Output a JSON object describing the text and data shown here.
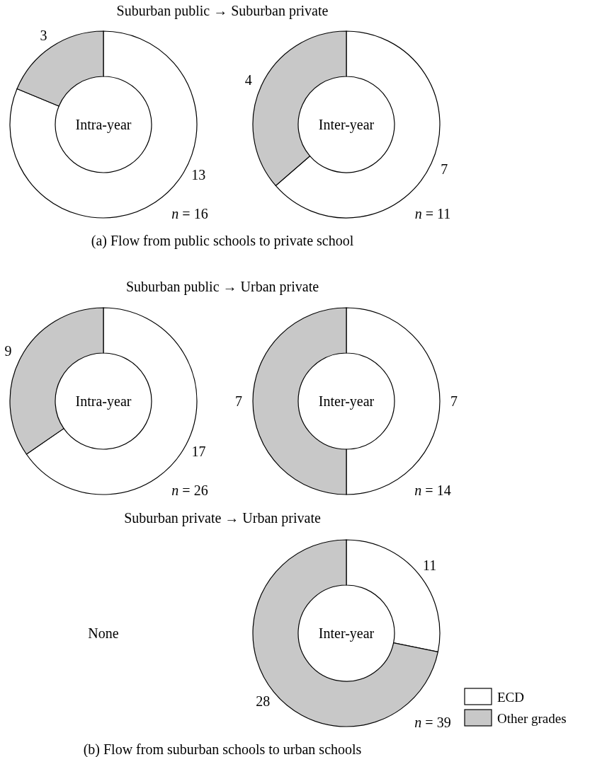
{
  "chart_data": [
    {
      "type": "donut",
      "title": "Suburban public → Suburban private",
      "subtitle": "Intra-year",
      "values": [
        13,
        3
      ],
      "colors": [
        "#ffffff",
        "#c8c8c8"
      ],
      "data_labels": true,
      "annotations": [
        "n = 16"
      ]
    },
    {
      "type": "donut",
      "subtitle": "Inter-year",
      "values": [
        7,
        4
      ],
      "colors": [
        "#ffffff",
        "#c8c8c8"
      ],
      "data_labels": true,
      "annotations": [
        "n = 11",
        "(a) Flow from public schools to private school"
      ]
    },
    {
      "type": "donut",
      "title": "Suburban public → Urban private",
      "subtitle": "Intra-year",
      "values": [
        17,
        9
      ],
      "colors": [
        "#ffffff",
        "#c8c8c8"
      ],
      "data_labels": true,
      "annotations": [
        "n = 26"
      ]
    },
    {
      "type": "donut",
      "subtitle": "Inter-year",
      "values": [
        7,
        7
      ],
      "colors": [
        "#ffffff",
        "#c8c8c8"
      ],
      "data_labels": true,
      "annotations": [
        "n = 14"
      ]
    },
    {
      "type": "other",
      "title": "Suburban private → Urban private",
      "annotations": [
        "None"
      ]
    },
    {
      "type": "donut",
      "subtitle": "Inter-year",
      "categories": [
        "ECD",
        "Other grades"
      ],
      "values": [
        11,
        28
      ],
      "colors": [
        "#ffffff",
        "#c8c8c8"
      ],
      "data_labels": true,
      "legend": "bottom right",
      "annotations": [
        "n = 39",
        "(b) Flow from suburban schools to urban schools"
      ]
    }
  ]
}
